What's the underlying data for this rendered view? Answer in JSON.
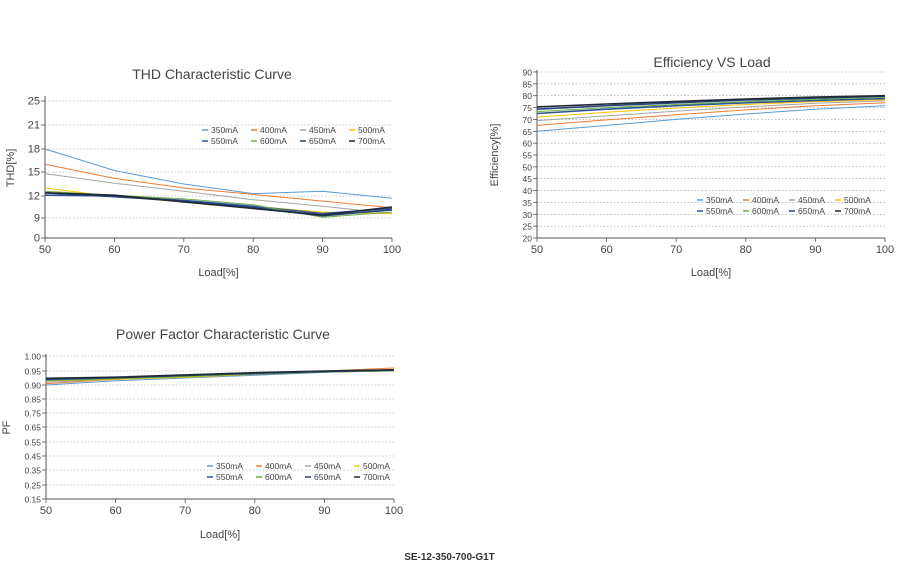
{
  "footer": "SE-12-350-700-G1T",
  "colors": {
    "350mA": "#5b9bd5",
    "400mA": "#ed7d31",
    "450mA": "#a5a5a5",
    "500mA": "#ffc000",
    "550mA": "#2f5597",
    "600mA": "#70ad47",
    "650mA": "#264478",
    "700mA": "#1f2a36"
  },
  "chart_data": [
    {
      "type": "line",
      "title": "THD Characteristic Curve",
      "xlabel": "Load[%]",
      "ylabel": "THD[%]",
      "x": [
        50,
        60,
        70,
        80,
        90,
        100
      ],
      "x_ticks": [
        "50",
        "60",
        "70",
        "80",
        "90",
        "100"
      ],
      "y_ticks": [
        "0",
        "9",
        "12",
        "15",
        "18",
        "21",
        "25"
      ],
      "ylim": [
        0,
        26
      ],
      "grid": "horizontal dotted",
      "legend_position": "top-right",
      "series": [
        {
          "name": "350mA",
          "values": [
            18,
            15.2,
            13.5,
            12.3,
            12.6,
            11.7
          ]
        },
        {
          "name": "400mA",
          "values": [
            16,
            14.2,
            13,
            12.2,
            11.3,
            10.4
          ]
        },
        {
          "name": "450mA",
          "values": [
            14.8,
            13.6,
            12.6,
            11.5,
            10.6,
            9.6
          ]
        },
        {
          "name": "500mA",
          "values": [
            13,
            11.9,
            11.2,
            10.6,
            9.8,
            9.6
          ]
        },
        {
          "name": "550mA",
          "values": [
            12.1,
            12,
            11.4,
            10.6,
            9.6,
            10.3
          ]
        },
        {
          "name": "600mA",
          "values": [
            12.6,
            12.1,
            11.6,
            10.8,
            9.1,
            9.8
          ]
        },
        {
          "name": "650mA",
          "values": [
            12.4,
            11.9,
            11.3,
            10.4,
            9.3,
            10.1
          ]
        },
        {
          "name": "700mA",
          "values": [
            12.4,
            12.1,
            11.2,
            10.3,
            9.4,
            10.5
          ]
        }
      ]
    },
    {
      "type": "line",
      "title": "Efficiency VS Load",
      "xlabel": "Load[%]",
      "ylabel": "Efficiency[%]",
      "x": [
        50,
        60,
        70,
        80,
        90,
        100
      ],
      "x_ticks": [
        "50",
        "60",
        "70",
        "80",
        "90",
        "100"
      ],
      "y_ticks": [
        "20",
        "25",
        "30",
        "35",
        "40",
        "45",
        "50",
        "55",
        "60",
        "65",
        "70",
        "75",
        "80",
        "85",
        "90"
      ],
      "ylim": [
        20,
        90
      ],
      "grid": "horizontal dotted",
      "legend_position": "bottom-right",
      "series": [
        {
          "name": "350mA",
          "values": [
            65,
            67.5,
            70,
            72.3,
            74.3,
            75.8
          ]
        },
        {
          "name": "400mA",
          "values": [
            67.5,
            69.8,
            72,
            74,
            75.8,
            77
          ]
        },
        {
          "name": "450mA",
          "values": [
            69.5,
            71.5,
            73.5,
            75.3,
            76.8,
            77.8
          ]
        },
        {
          "name": "500mA",
          "values": [
            71,
            73,
            74.8,
            76.3,
            77.5,
            78.3
          ]
        },
        {
          "name": "550mA",
          "values": [
            72.5,
            74.3,
            75.8,
            77,
            78,
            78.8
          ]
        },
        {
          "name": "600mA",
          "values": [
            73.3,
            75,
            76.3,
            77.5,
            78.5,
            79.3
          ]
        },
        {
          "name": "650mA",
          "values": [
            74.3,
            75.8,
            77,
            78.2,
            79,
            79.8
          ]
        },
        {
          "name": "700mA",
          "values": [
            75.3,
            76.5,
            77.6,
            78.6,
            79.4,
            80
          ]
        }
      ]
    },
    {
      "type": "line",
      "title": "Power Factor Characteristic Curve",
      "xlabel": "Load[%]",
      "ylabel": "PF",
      "x": [
        50,
        60,
        70,
        80,
        90,
        100
      ],
      "x_ticks": [
        "50",
        "60",
        "70",
        "80",
        "90",
        "100"
      ],
      "y_ticks": [
        "0.15",
        "0.25",
        "0.35",
        "0.45",
        "0.55",
        "0.65",
        "0.75",
        "0.85",
        "0.90",
        "0.95",
        "1.00"
      ],
      "ylim": [
        0.15,
        1.0
      ],
      "grid": "horizontal dotted",
      "legend_position": "bottom-right",
      "series": [
        {
          "name": "350mA",
          "values": [
            0.9,
            0.915,
            0.925,
            0.935,
            0.945,
            0.955
          ]
        },
        {
          "name": "400mA",
          "values": [
            0.905,
            0.92,
            0.93,
            0.94,
            0.95,
            0.96
          ]
        },
        {
          "name": "450mA",
          "values": [
            0.91,
            0.92,
            0.93,
            0.94,
            0.948,
            0.955
          ]
        },
        {
          "name": "500mA",
          "values": [
            0.915,
            0.92,
            0.928,
            0.938,
            0.946,
            0.952
          ]
        },
        {
          "name": "550mA",
          "values": [
            0.92,
            0.925,
            0.932,
            0.94,
            0.947,
            0.952
          ]
        },
        {
          "name": "600mA",
          "values": [
            0.915,
            0.922,
            0.93,
            0.94,
            0.946,
            0.95
          ]
        },
        {
          "name": "650mA",
          "values": [
            0.92,
            0.926,
            0.934,
            0.942,
            0.948,
            0.953
          ]
        },
        {
          "name": "700mA",
          "values": [
            0.924,
            0.928,
            0.936,
            0.944,
            0.95,
            0.954
          ]
        }
      ]
    }
  ]
}
